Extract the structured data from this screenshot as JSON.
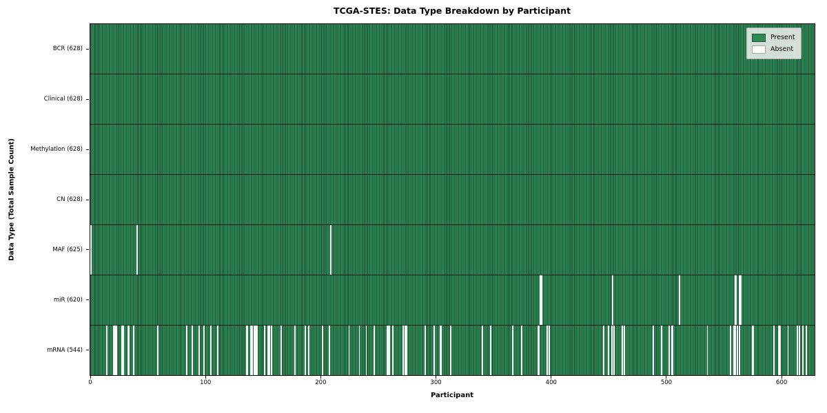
{
  "title": "TCGA-STES: Data Type Breakdown by Participant",
  "xlabel": "Participant",
  "ylabel": "Data Type (Total Sample Count)",
  "legend": {
    "present_label": "Present",
    "absent_label": "Absent"
  },
  "colors": {
    "present": "#2e8b57",
    "absent": "#ffffff",
    "plot_border": "#000000"
  },
  "chart_data": {
    "type": "heatmap",
    "title": "TCGA-STES: Data Type Breakdown by Participant",
    "xlabel": "Participant",
    "ylabel": "Data Type (Total Sample Count)",
    "legend_entries": [
      "Present",
      "Absent"
    ],
    "legend_position": "upper right",
    "grid": false,
    "n_participants": 628,
    "xlim": [
      0,
      628
    ],
    "x_ticks": [
      0,
      100,
      200,
      300,
      400,
      500,
      600
    ],
    "rows": [
      {
        "name": "BCR",
        "label": "BCR (628)",
        "present_count": 628,
        "absent_count": 0,
        "absent_participants": []
      },
      {
        "name": "Clinical",
        "label": "Clinical (628)",
        "present_count": 628,
        "absent_count": 0,
        "absent_participants": []
      },
      {
        "name": "Methylation",
        "label": "Methylation (628)",
        "present_count": 628,
        "absent_count": 0,
        "absent_participants": []
      },
      {
        "name": "CN",
        "label": "CN (628)",
        "present_count": 628,
        "absent_count": 0,
        "absent_participants": []
      },
      {
        "name": "MAF",
        "label": "MAF (625)",
        "present_count": 625,
        "absent_count": 3,
        "absent_participants": [
          0,
          40,
          208
        ]
      },
      {
        "name": "miR",
        "label": "miR (620)",
        "present_count": 620,
        "absent_count": 8,
        "absent_participants": [
          390,
          391,
          453,
          511,
          559,
          560,
          563,
          564
        ]
      },
      {
        "name": "mRNA",
        "label": "mRNA (544)",
        "present_count": 544,
        "absent_count": 84,
        "absent_participants": [
          14,
          20,
          21,
          22,
          27,
          28,
          32,
          33,
          37,
          58,
          83,
          88,
          94,
          98,
          104,
          110,
          135,
          136,
          139,
          140,
          142,
          143,
          144,
          151,
          154,
          155,
          157,
          165,
          177,
          186,
          189,
          201,
          207,
          224,
          233,
          239,
          246,
          257,
          258,
          259,
          262,
          271,
          273,
          274,
          290,
          298,
          303,
          304,
          312,
          340,
          347,
          366,
          374,
          388,
          389,
          396,
          398,
          445,
          449,
          452,
          454,
          461,
          463,
          488,
          495,
          502,
          504,
          505,
          535,
          555,
          558,
          559,
          561,
          563,
          574,
          575,
          593,
          597,
          598,
          605,
          613,
          615,
          618,
          621
        ]
      }
    ]
  }
}
